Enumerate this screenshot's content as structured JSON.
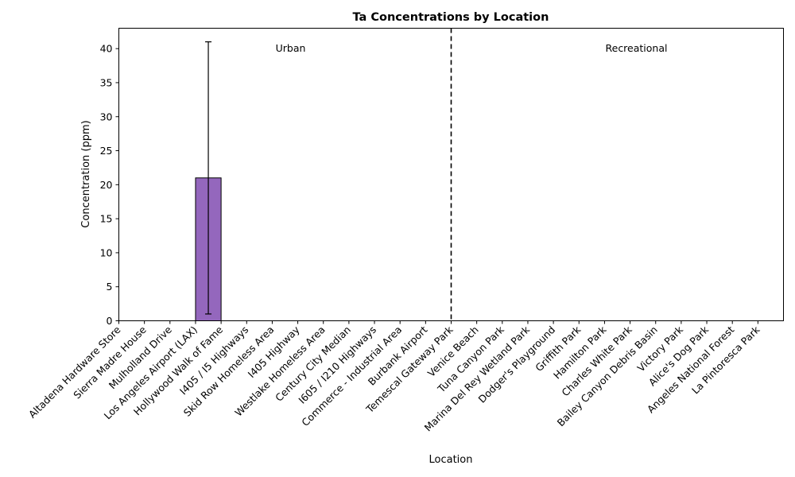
{
  "chart_data": {
    "type": "bar",
    "title": "Ta Concentrations by Location",
    "xlabel": "Location",
    "ylabel": "Concentration (ppm)",
    "ylim": [
      0,
      43
    ],
    "yticks": [
      0,
      5,
      10,
      15,
      20,
      25,
      30,
      35,
      40
    ],
    "grid": false,
    "bar_color": "#9467bd",
    "categories": [
      "Altadena Hardware Store",
      "Sierra Madre House",
      "Mulholland Drive",
      "Los Angeles Airport (LAX)",
      "Hollywood Walk of Fame",
      "I405 / I5 Highways",
      "Skid Row Homeless Area",
      "I405 Highway",
      "Westlake Homeless Area",
      "Century City Median",
      "I605 / I210 Highways",
      "Commerce - Industrial Area",
      "Burbank Airport",
      "Temescal Gateway Park",
      "Venice Beach",
      "Tuna Canyon Park",
      "Marina Del Rey Wetland Park",
      "Dodger's Playground",
      "Griffith Park",
      "Hamilton Park",
      "Charles White Park",
      "Bailey Canyon Debris Basin",
      "Victory Park",
      "Alice's Dog Park",
      "Angeles National Forest",
      "La Pintoresca Park"
    ],
    "values": [
      null,
      null,
      null,
      21,
      null,
      null,
      null,
      null,
      null,
      null,
      null,
      null,
      null,
      null,
      null,
      null,
      null,
      null,
      null,
      null,
      null,
      null,
      null,
      null,
      null,
      null
    ],
    "error": [
      null,
      null,
      null,
      20,
      null,
      null,
      null,
      null,
      null,
      null,
      null,
      null,
      null,
      null,
      null,
      null,
      null,
      null,
      null,
      null,
      null,
      null,
      null,
      null,
      null,
      null
    ],
    "divider_after_index": 12,
    "annotations": [
      {
        "text": "Urban",
        "group": "urban"
      },
      {
        "text": "Recreational",
        "group": "recreational"
      }
    ]
  }
}
